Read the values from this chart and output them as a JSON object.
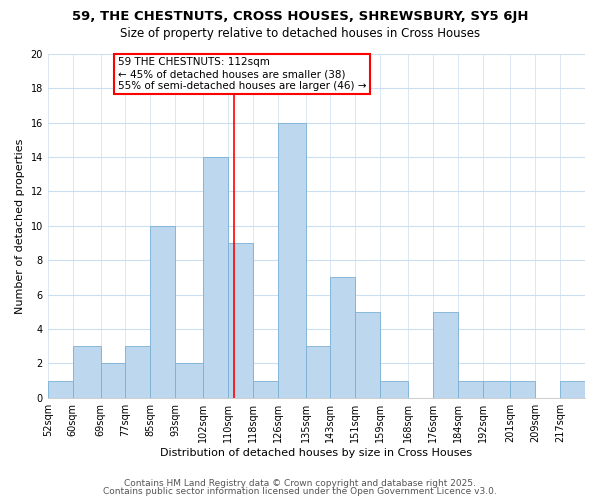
{
  "title": "59, THE CHESTNUTS, CROSS HOUSES, SHREWSBURY, SY5 6JH",
  "subtitle": "Size of property relative to detached houses in Cross Houses",
  "xlabel": "Distribution of detached houses by size in Cross Houses",
  "ylabel": "Number of detached properties",
  "bin_labels": [
    "52sqm",
    "60sqm",
    "69sqm",
    "77sqm",
    "85sqm",
    "93sqm",
    "102sqm",
    "110sqm",
    "118sqm",
    "126sqm",
    "135sqm",
    "143sqm",
    "151sqm",
    "159sqm",
    "168sqm",
    "176sqm",
    "184sqm",
    "192sqm",
    "201sqm",
    "209sqm",
    "217sqm"
  ],
  "bin_edges": [
    52,
    60,
    69,
    77,
    85,
    93,
    102,
    110,
    118,
    126,
    135,
    143,
    151,
    159,
    168,
    176,
    184,
    192,
    201,
    209,
    217,
    225
  ],
  "bar_heights": [
    1,
    3,
    2,
    3,
    10,
    2,
    14,
    9,
    1,
    16,
    3,
    7,
    5,
    1,
    0,
    5,
    1,
    1,
    1,
    0,
    1
  ],
  "bar_color": "#bdd7ee",
  "bar_edge_color": "#7ab0d4",
  "reference_line_x": 112,
  "reference_line_color": "red",
  "ylim": [
    0,
    20
  ],
  "yticks": [
    0,
    2,
    4,
    6,
    8,
    10,
    12,
    14,
    16,
    18,
    20
  ],
  "annotation_title": "59 THE CHESTNUTS: 112sqm",
  "annotation_line1": "← 45% of detached houses are smaller (38)",
  "annotation_line2": "55% of semi-detached houses are larger (46) →",
  "footer_line1": "Contains HM Land Registry data © Crown copyright and database right 2025.",
  "footer_line2": "Contains public sector information licensed under the Open Government Licence v3.0.",
  "background_color": "#ffffff",
  "grid_color": "#ccdff0",
  "title_fontsize": 9.5,
  "subtitle_fontsize": 8.5,
  "axis_label_fontsize": 8,
  "tick_fontsize": 7,
  "annotation_title_fontsize": 8,
  "annotation_body_fontsize": 7.5,
  "footer_fontsize": 6.5
}
